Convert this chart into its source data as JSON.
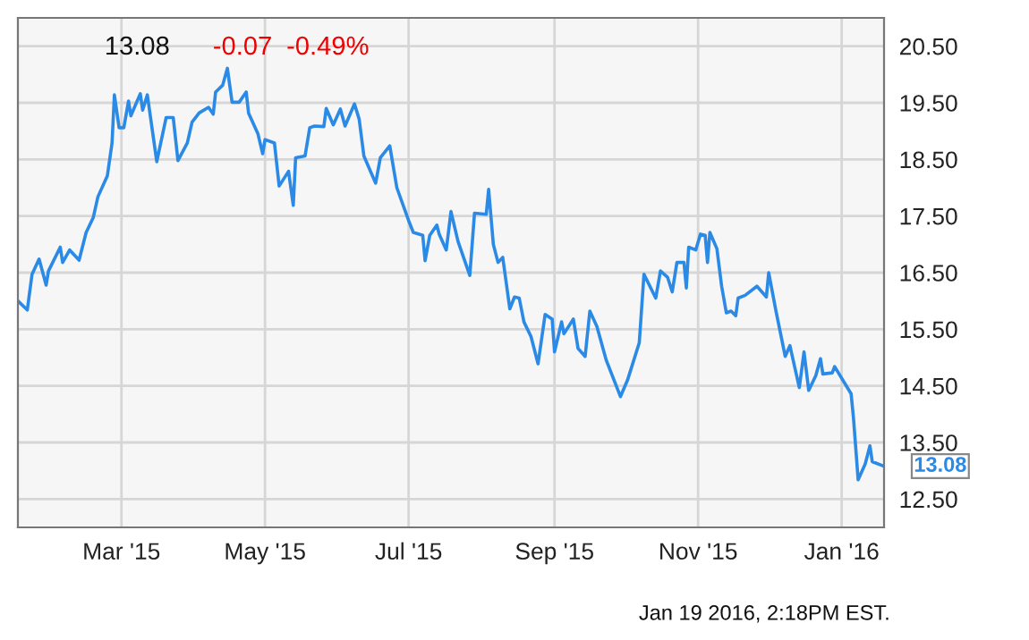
{
  "chart_data": {
    "type": "line",
    "x": [
      "2015-01-16",
      "2015-01-20",
      "2015-01-22",
      "2015-01-25",
      "2015-01-28",
      "2015-01-29",
      "2015-02-03",
      "2015-02-04",
      "2015-02-07",
      "2015-02-11",
      "2015-02-14",
      "2015-02-17",
      "2015-02-19",
      "2015-02-23",
      "2015-02-25",
      "2015-02-26",
      "2015-02-28",
      "2015-03-02",
      "2015-03-04",
      "2015-03-05",
      "2015-03-09",
      "2015-03-10",
      "2015-03-12",
      "2015-03-16",
      "2015-03-20",
      "2015-03-23",
      "2015-03-25",
      "2015-03-29",
      "2015-03-31",
      "2015-04-03",
      "2015-04-07",
      "2015-04-09",
      "2015-04-10",
      "2015-04-13",
      "2015-04-15",
      "2015-04-17",
      "2015-04-20",
      "2015-04-23",
      "2015-04-24",
      "2015-04-28",
      "2015-04-30",
      "2015-05-01",
      "2015-05-05",
      "2015-05-07",
      "2015-05-11",
      "2015-05-13",
      "2015-05-14",
      "2015-05-18",
      "2015-05-20",
      "2015-05-22",
      "2015-05-26",
      "2015-05-27",
      "2015-05-30",
      "2015-06-02",
      "2015-06-04",
      "2015-06-08",
      "2015-06-10",
      "2015-06-12",
      "2015-06-17",
      "2015-06-19",
      "2015-06-23",
      "2015-06-26",
      "2015-07-01",
      "2015-07-03",
      "2015-07-07",
      "2015-07-08",
      "2015-07-10",
      "2015-07-13",
      "2015-07-14",
      "2015-07-17",
      "2015-07-19",
      "2015-07-22",
      "2015-07-27",
      "2015-07-29",
      "2015-08-03",
      "2015-08-04",
      "2015-08-06",
      "2015-08-08",
      "2015-08-10",
      "2015-08-13",
      "2015-08-15",
      "2015-08-17",
      "2015-08-19",
      "2015-08-22",
      "2015-08-25",
      "2015-08-28",
      "2015-08-31",
      "2015-09-01",
      "2015-09-04",
      "2015-09-05",
      "2015-09-09",
      "2015-09-11",
      "2015-09-14",
      "2015-09-16",
      "2015-09-19",
      "2015-09-23",
      "2015-09-29",
      "2015-10-02",
      "2015-10-07",
      "2015-10-09",
      "2015-10-14",
      "2015-10-16",
      "2015-10-19",
      "2015-10-21",
      "2015-10-23",
      "2015-10-26",
      "2015-10-27",
      "2015-10-28",
      "2015-10-31",
      "2015-11-02",
      "2015-11-04",
      "2015-11-05",
      "2015-11-06",
      "2015-11-09",
      "2015-11-11",
      "2015-11-13",
      "2015-11-15",
      "2015-11-17",
      "2015-11-18",
      "2015-11-21",
      "2015-11-26",
      "2015-11-30",
      "2015-12-01",
      "2015-12-04",
      "2015-12-08",
      "2015-12-10",
      "2015-12-14",
      "2015-12-16",
      "2015-12-18",
      "2015-12-21",
      "2015-12-23",
      "2015-12-24",
      "2015-12-28",
      "2015-12-29",
      "2016-01-05",
      "2016-01-06",
      "2016-01-08",
      "2016-01-11",
      "2016-01-13",
      "2016-01-14",
      "2016-01-19"
    ],
    "series": [
      {
        "color": "#2a8ae6",
        "values": [
          16.0,
          15.84,
          16.47,
          16.74,
          16.28,
          16.53,
          16.95,
          16.68,
          16.9,
          16.72,
          17.21,
          17.47,
          17.84,
          18.21,
          18.79,
          19.64,
          19.06,
          19.06,
          19.53,
          19.27,
          19.66,
          19.37,
          19.64,
          18.46,
          19.24,
          19.24,
          18.48,
          18.79,
          19.16,
          19.32,
          19.42,
          19.3,
          19.69,
          19.81,
          20.11,
          19.51,
          19.51,
          19.69,
          19.32,
          18.95,
          18.6,
          18.85,
          18.79,
          18.03,
          18.29,
          17.69,
          18.53,
          18.56,
          19.06,
          19.09,
          19.08,
          19.4,
          19.11,
          19.39,
          19.09,
          19.48,
          19.21,
          18.56,
          18.08,
          18.53,
          18.74,
          18.0,
          17.42,
          17.21,
          17.16,
          16.71,
          17.16,
          17.34,
          17.18,
          16.9,
          17.58,
          17.05,
          16.45,
          17.55,
          17.53,
          17.97,
          17.0,
          16.68,
          16.77,
          15.86,
          16.07,
          16.05,
          15.63,
          15.37,
          14.89,
          15.76,
          15.68,
          15.1,
          15.63,
          15.42,
          15.68,
          15.16,
          15.02,
          15.82,
          15.55,
          14.95,
          14.31,
          14.6,
          15.26,
          16.47,
          16.05,
          16.53,
          16.42,
          16.16,
          16.68,
          16.68,
          16.23,
          16.95,
          16.9,
          17.18,
          17.16,
          16.68,
          17.21,
          16.92,
          16.26,
          15.79,
          15.82,
          15.74,
          16.05,
          16.1,
          16.26,
          16.07,
          16.5,
          15.84,
          15.02,
          15.21,
          14.47,
          15.1,
          14.42,
          14.68,
          14.98,
          14.71,
          14.73,
          14.84,
          14.36,
          13.94,
          12.84,
          13.12,
          13.44,
          13.16,
          13.08
        ]
      }
    ],
    "xlim": [
      "2015-01-16",
      "2016-01-19"
    ],
    "xticks": [
      {
        "value": "2015-03-01",
        "label": "Mar '15"
      },
      {
        "value": "2015-05-01",
        "label": "May '15"
      },
      {
        "value": "2015-07-01",
        "label": "Jul '15"
      },
      {
        "value": "2015-09-01",
        "label": "Sep '15"
      },
      {
        "value": "2015-11-01",
        "label": "Nov '15"
      },
      {
        "value": "2016-01-01",
        "label": "Jan '16"
      }
    ],
    "ylim": [
      12.0,
      21.0
    ],
    "yticks": [
      {
        "value": 12.5,
        "label": "12.50"
      },
      {
        "value": 13.5,
        "label": "13.50"
      },
      {
        "value": 14.5,
        "label": "14.50"
      },
      {
        "value": 15.5,
        "label": "15.50"
      },
      {
        "value": 16.5,
        "label": "16.50"
      },
      {
        "value": 17.5,
        "label": "17.50"
      },
      {
        "value": 18.5,
        "label": "18.50"
      },
      {
        "value": 19.5,
        "label": "19.50"
      },
      {
        "value": 20.5,
        "label": "20.50"
      }
    ],
    "grid": true,
    "annotations": [
      "13.08",
      "-0.07",
      "-0.49%",
      "Jan 19 2016, 2:18PM EST.",
      {
        "text": "13.08",
        "x": "2016-01-19",
        "y": 13.08
      }
    ]
  }
}
